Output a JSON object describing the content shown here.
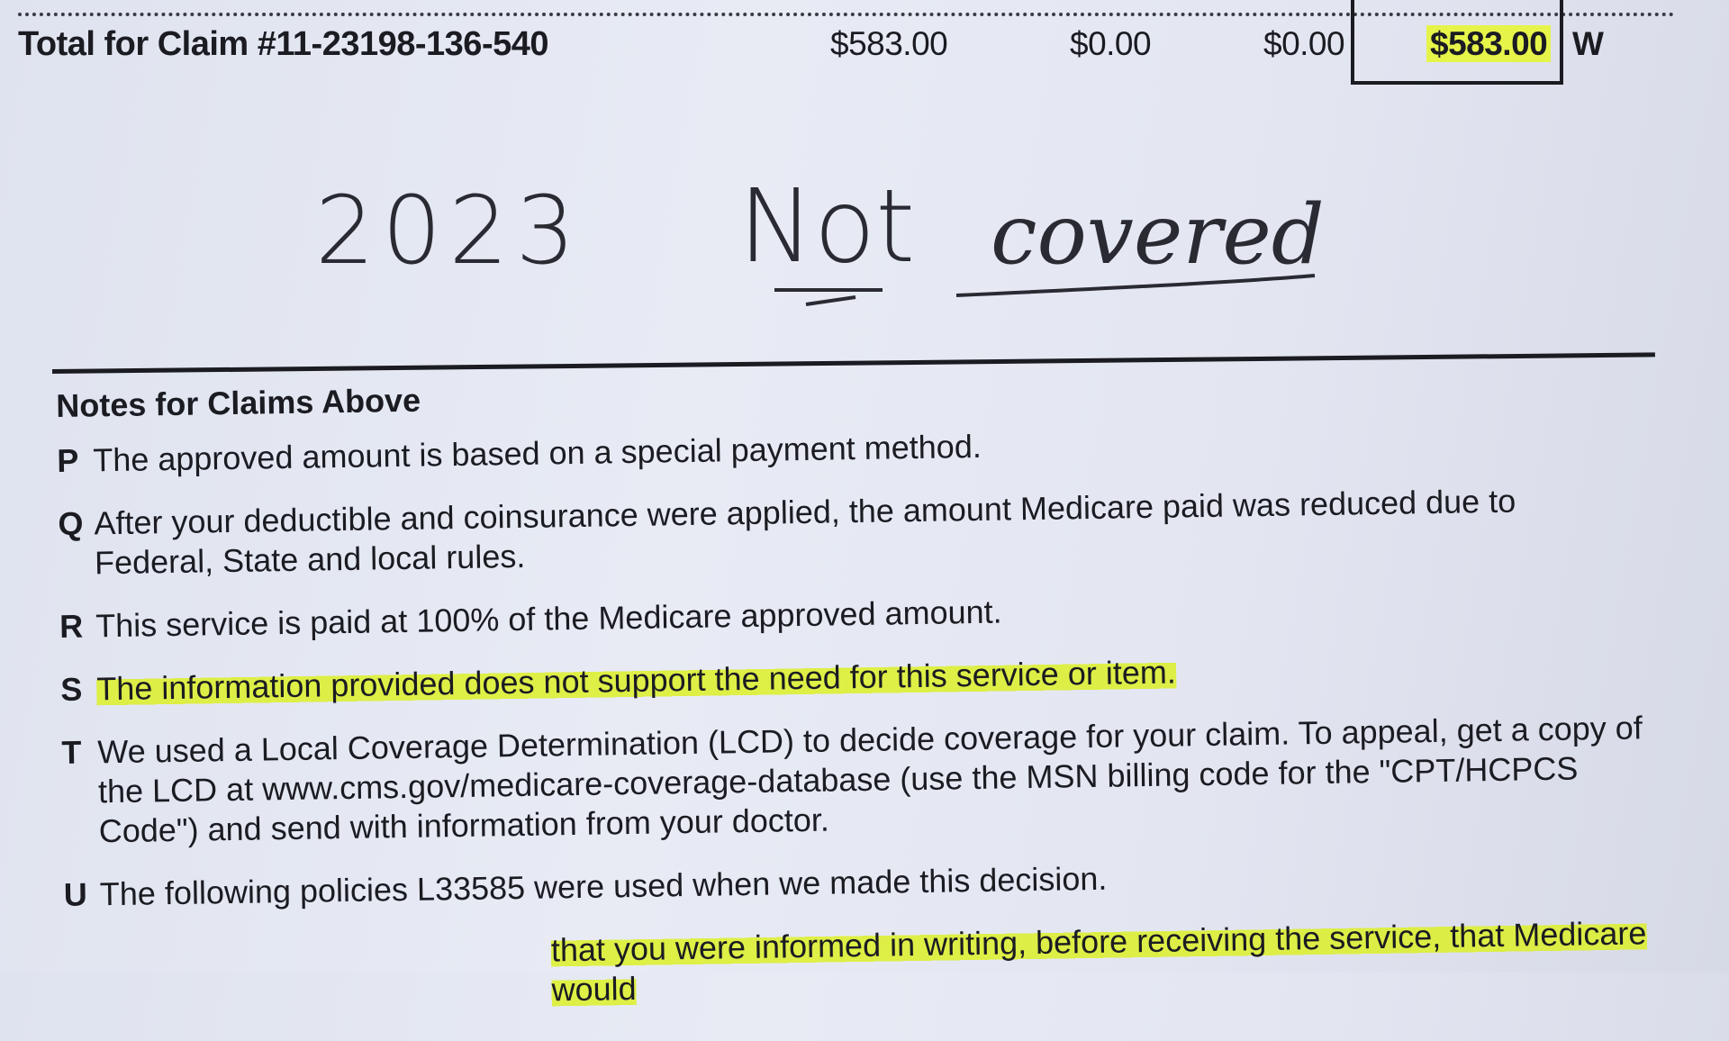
{
  "total_row": {
    "label": "Total for Claim #11-23198-136-540",
    "amounts": [
      "$583.00",
      "$0.00",
      "$0.00",
      "$583.00"
    ],
    "flag": "W"
  },
  "handwriting": {
    "text": "2023 Not covered",
    "year": "2023",
    "word1": "Not",
    "word2": "covered"
  },
  "notes": {
    "heading": "Notes for Claims Above",
    "items": [
      {
        "code": "P",
        "text": "The approved amount is based on a special payment method."
      },
      {
        "code": "Q",
        "text": "After your deductible and coinsurance were applied, the amount Medicare paid was reduced due to Federal, State and local rules."
      },
      {
        "code": "R",
        "text": "This service is paid at 100% of the Medicare approved amount."
      },
      {
        "code": "S",
        "text": "The information provided does not support the need for this service or item."
      },
      {
        "code": "T",
        "text": "We used a Local Coverage Determination (LCD) to decide coverage for your claim. To appeal, get a copy of the LCD at www.cms.gov/medicare-coverage-database (use the MSN billing code for the \"CPT/HCPCS Code\") and send with information from your doctor."
      },
      {
        "code": "U",
        "text": "The following policies L33585 were used when we made this decision."
      },
      {
        "code": "",
        "text": "that you were informed in writing, before receiving the service, that Medicare would"
      }
    ]
  },
  "colors": {
    "highlight": "#e6f44a",
    "paper": "#e3e6f1",
    "ink": "#1b1b22"
  }
}
